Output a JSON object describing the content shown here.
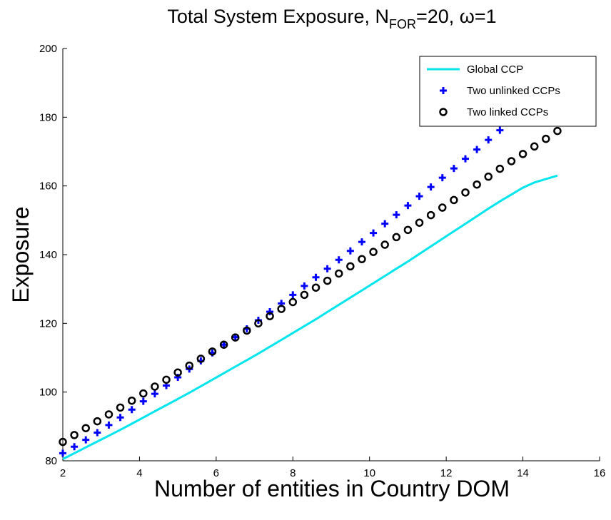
{
  "chart_data": {
    "type": "line",
    "title": {
      "prefix": "Total System Exposure, N",
      "subscript": "FOR",
      "suffix": "=20, ω=1"
    },
    "xlabel": "Number of entities in Country DOM",
    "ylabel": "Exposure",
    "xlim": [
      2,
      16
    ],
    "ylim": [
      80,
      200
    ],
    "xticks": [
      2,
      4,
      6,
      8,
      10,
      12,
      14,
      16
    ],
    "yticks": [
      80,
      100,
      120,
      140,
      160,
      180,
      200
    ],
    "grid": false,
    "legend_position": "top-right",
    "series": [
      {
        "name": "Global CCP",
        "style": "line",
        "color": "#00e5ee",
        "x": [
          2,
          2.3,
          2.6,
          2.9,
          3.2,
          3.5,
          3.8,
          4.1,
          4.4,
          4.7,
          5.0,
          5.3,
          5.6,
          5.9,
          6.2,
          6.5,
          6.8,
          7.1,
          7.4,
          7.7,
          8.0,
          8.3,
          8.6,
          8.9,
          9.2,
          9.5,
          9.8,
          10.1,
          10.4,
          10.7,
          11.0,
          11.3,
          11.6,
          11.9,
          12.2,
          12.5,
          12.8,
          13.1,
          13.4,
          13.7,
          14.0,
          14.3,
          14.6,
          14.9
        ],
        "y": [
          80.5,
          82.2,
          83.9,
          85.6,
          87.3,
          89.0,
          90.8,
          92.6,
          94.4,
          96.2,
          98.0,
          99.8,
          101.7,
          103.6,
          105.5,
          107.4,
          109.3,
          111.2,
          113.2,
          115.2,
          117.2,
          119.2,
          121.2,
          123.3,
          125.4,
          127.5,
          129.6,
          131.7,
          133.8,
          135.9,
          138.0,
          140.2,
          142.4,
          144.6,
          146.8,
          149.0,
          151.2,
          153.4,
          155.5,
          157.5,
          159.5,
          161.0,
          162.0,
          163.0
        ]
      },
      {
        "name": "Two unlinked CCPs",
        "style": "plus",
        "color": "#0000ff",
        "x": [
          2.0,
          2.3,
          2.6,
          2.9,
          3.2,
          3.5,
          3.8,
          4.1,
          4.4,
          4.7,
          5.0,
          5.3,
          5.6,
          5.9,
          6.2,
          6.5,
          6.8,
          7.1,
          7.4,
          7.7,
          8.0,
          8.3,
          8.6,
          8.9,
          9.2,
          9.5,
          9.8,
          10.1,
          10.4,
          10.7,
          11.0,
          11.3,
          11.6,
          11.9,
          12.2,
          12.5,
          12.8,
          13.1,
          13.4
        ],
        "y": [
          82.2,
          84.1,
          86.1,
          88.2,
          90.4,
          92.6,
          94.9,
          97.3,
          99.5,
          101.9,
          104.3,
          106.7,
          109.1,
          111.4,
          113.8,
          116.0,
          118.4,
          120.9,
          123.4,
          125.8,
          128.3,
          130.9,
          133.4,
          135.9,
          138.5,
          141.1,
          143.7,
          146.3,
          149.0,
          151.6,
          154.3,
          157.0,
          159.7,
          162.4,
          165.1,
          167.9,
          170.6,
          173.4,
          176.2
        ]
      },
      {
        "name": "Two linked CCPs",
        "style": "circle",
        "color": "#000000",
        "x": [
          2.0,
          2.3,
          2.6,
          2.9,
          3.2,
          3.5,
          3.8,
          4.1,
          4.4,
          4.7,
          5.0,
          5.3,
          5.6,
          5.9,
          6.2,
          6.5,
          6.8,
          7.1,
          7.4,
          7.7,
          8.0,
          8.3,
          8.6,
          8.9,
          9.2,
          9.5,
          9.8,
          10.1,
          10.4,
          10.7,
          11.0,
          11.3,
          11.6,
          11.9,
          12.2,
          12.5,
          12.8,
          13.1,
          13.4,
          13.7,
          14.0,
          14.3,
          14.6,
          14.9
        ],
        "y": [
          85.5,
          87.5,
          89.5,
          91.5,
          93.5,
          95.5,
          97.5,
          99.6,
          101.6,
          103.6,
          105.7,
          107.7,
          109.7,
          111.8,
          113.8,
          115.9,
          117.9,
          120.0,
          122.1,
          124.2,
          126.2,
          128.3,
          130.4,
          132.4,
          134.5,
          136.6,
          138.7,
          140.8,
          142.9,
          145.1,
          147.2,
          149.3,
          151.5,
          153.7,
          155.9,
          158.1,
          160.4,
          162.7,
          165.0,
          167.2,
          169.3,
          171.5,
          173.7,
          176.0
        ]
      }
    ]
  }
}
